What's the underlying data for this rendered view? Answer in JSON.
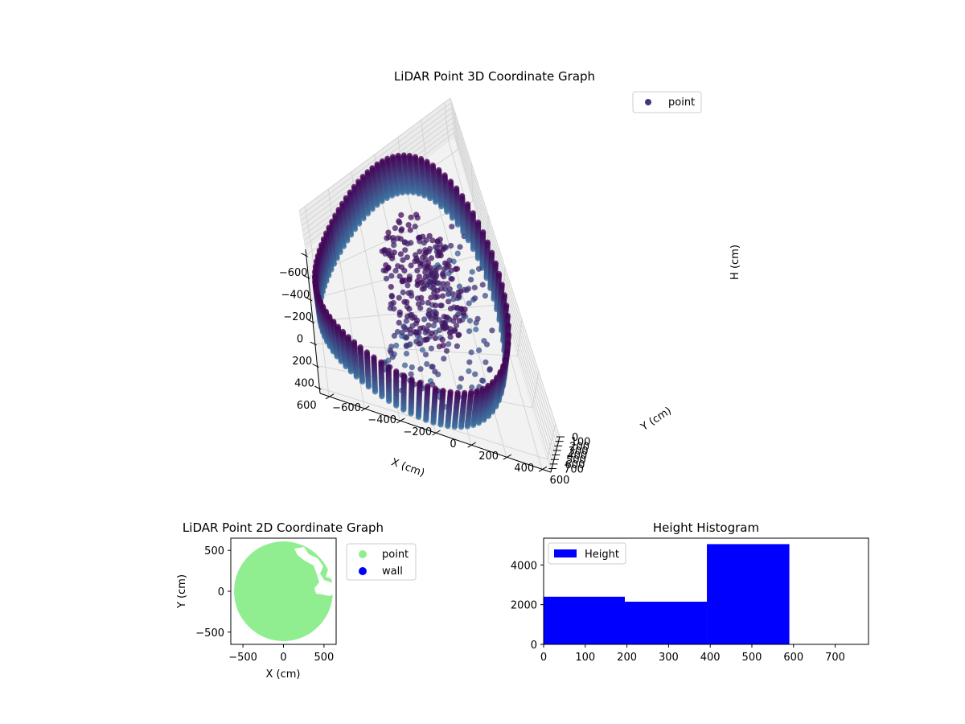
{
  "figure": {
    "background": "#ffffff"
  },
  "chart_data": [
    {
      "type": "scatter",
      "projection": "3d",
      "title": "LiDAR Point 3D Coordinate Graph",
      "xlabel": "X (cm)",
      "ylabel": "Y (cm)",
      "zlabel": "H (cm)",
      "xlim": [
        -650,
        650
      ],
      "ylim": [
        -650,
        650
      ],
      "zlim": [
        780,
        0
      ],
      "z_inverted": true,
      "x_ticks": [
        -600,
        -400,
        -200,
        0,
        200,
        400,
        600
      ],
      "y_ticks": [
        -600,
        -400,
        -200,
        0,
        200,
        400,
        600
      ],
      "z_ticks": [
        0,
        100,
        200,
        300,
        400,
        500,
        600,
        700
      ],
      "x_tick_labels": [
        "−600",
        "−400",
        "−200",
        "0",
        "200",
        "400",
        "600"
      ],
      "y_tick_labels": [
        "−600",
        "−400",
        "−200",
        "0",
        "200",
        "400",
        "600"
      ],
      "z_tick_labels": [
        "0",
        "100",
        "200",
        "300",
        "400",
        "500",
        "600",
        "700"
      ],
      "legend": {
        "entries": [
          "point"
        ],
        "placement": "top-right"
      },
      "series": [
        {
          "name": "point",
          "color_top": "#440154",
          "color_bottom": "#3b6c9c",
          "legend_color": "#46337e",
          "points": [
            {
              "ring_radius": 600,
              "h_top": 10,
              "h_bottom": 760
            },
            {
              "cluster_center": [
                0,
                100
              ],
              "h": [
                80,
                300
              ]
            }
          ]
        }
      ],
      "grid": true
    },
    {
      "type": "scatter",
      "title": "LiDAR Point 2D Coordinate Graph",
      "xlabel": "X (cm)",
      "ylabel": "Y (cm)",
      "xlim": [
        -650,
        650
      ],
      "ylim": [
        -650,
        650
      ],
      "x_ticks": [
        -500,
        0,
        500
      ],
      "y_ticks": [
        -500,
        0,
        500
      ],
      "x_tick_labels": [
        "−500",
        "0",
        "500"
      ],
      "y_tick_labels": [
        "−500",
        "0",
        "500"
      ],
      "legend": {
        "placement": "outside-right"
      },
      "series": [
        {
          "name": "point",
          "color": "#90ee90",
          "disk_radius": 610
        },
        {
          "name": "wall",
          "color": "#0000ff",
          "points": []
        }
      ]
    },
    {
      "type": "bar",
      "title": "Height Histogram",
      "xlabel": "",
      "ylabel": "",
      "xlim": [
        0,
        780
      ],
      "ylim": [
        0,
        5350
      ],
      "x_ticks": [
        0,
        100,
        200,
        300,
        400,
        500,
        600,
        700
      ],
      "y_ticks": [
        0,
        2000,
        4000
      ],
      "x_tick_labels": [
        "0",
        "100",
        "200",
        "300",
        "400",
        "500",
        "600",
        "700"
      ],
      "y_tick_labels": [
        "0",
        "2000",
        "4000"
      ],
      "legend": {
        "entries": [
          "Height"
        ],
        "placement": "top-left"
      },
      "series": [
        {
          "name": "Height",
          "color": "#0000ff",
          "bins": [
            {
              "from": 0,
              "to": 195,
              "value": 2400
            },
            {
              "from": 195,
              "to": 392,
              "value": 2150
            },
            {
              "from": 392,
              "to": 590,
              "value": 5050
            },
            {
              "from": 590,
              "to": 780,
              "value": 0
            }
          ]
        }
      ]
    }
  ]
}
